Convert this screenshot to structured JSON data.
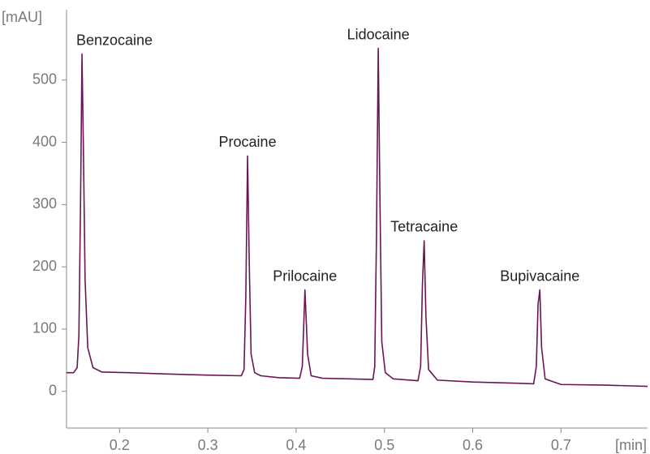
{
  "chart_data": {
    "type": "line",
    "y_label": "[mAU]",
    "x_label": "[min]",
    "x": [
      0.14,
      0.148,
      0.152,
      0.154,
      0.156,
      0.1575,
      0.159,
      0.161,
      0.164,
      0.17,
      0.18,
      0.21,
      0.25,
      0.3,
      0.338,
      0.341,
      0.343,
      0.345,
      0.347,
      0.349,
      0.353,
      0.36,
      0.38,
      0.404,
      0.407,
      0.41,
      0.413,
      0.417,
      0.43,
      0.46,
      0.487,
      0.489,
      0.491,
      0.493,
      0.495,
      0.497,
      0.501,
      0.51,
      0.538,
      0.541,
      0.543,
      0.545,
      0.547,
      0.55,
      0.56,
      0.6,
      0.65,
      0.669,
      0.672,
      0.674,
      0.676,
      0.678,
      0.682,
      0.7,
      0.75,
      0.798
    ],
    "series": [
      {
        "color": "#6b1654",
        "values": [
          30,
          30,
          38,
          90,
          320,
          542,
          400,
          180,
          70,
          38,
          31,
          30,
          28,
          26,
          25,
          35,
          150,
          378,
          200,
          60,
          30,
          25,
          22,
          21,
          40,
          163,
          60,
          25,
          21,
          20,
          19,
          40,
          250,
          551,
          300,
          80,
          30,
          20,
          17,
          40,
          170,
          242,
          120,
          35,
          18,
          15,
          13,
          12,
          40,
          140,
          163,
          70,
          20,
          11,
          10,
          8
        ]
      }
    ],
    "annotations": [
      {
        "text": "Benzocaine",
        "x": 0.1575,
        "y": 542
      },
      {
        "text": "Procaine",
        "x": 0.345,
        "y": 378
      },
      {
        "text": "Prilocaine",
        "x": 0.41,
        "y": 163
      },
      {
        "text": "Lidocaine",
        "x": 0.493,
        "y": 551
      },
      {
        "text": "Tetracaine",
        "x": 0.545,
        "y": 242
      },
      {
        "text": "Bupivacaine",
        "x": 0.676,
        "y": 163
      }
    ],
    "xlim": [
      0.14,
      0.798
    ],
    "ylim": [
      -59,
      613
    ],
    "xticks": [
      0.2,
      0.3,
      0.4,
      0.5,
      0.6,
      0.7
    ],
    "yticks": [
      0,
      100,
      200,
      300,
      400,
      500
    ]
  }
}
